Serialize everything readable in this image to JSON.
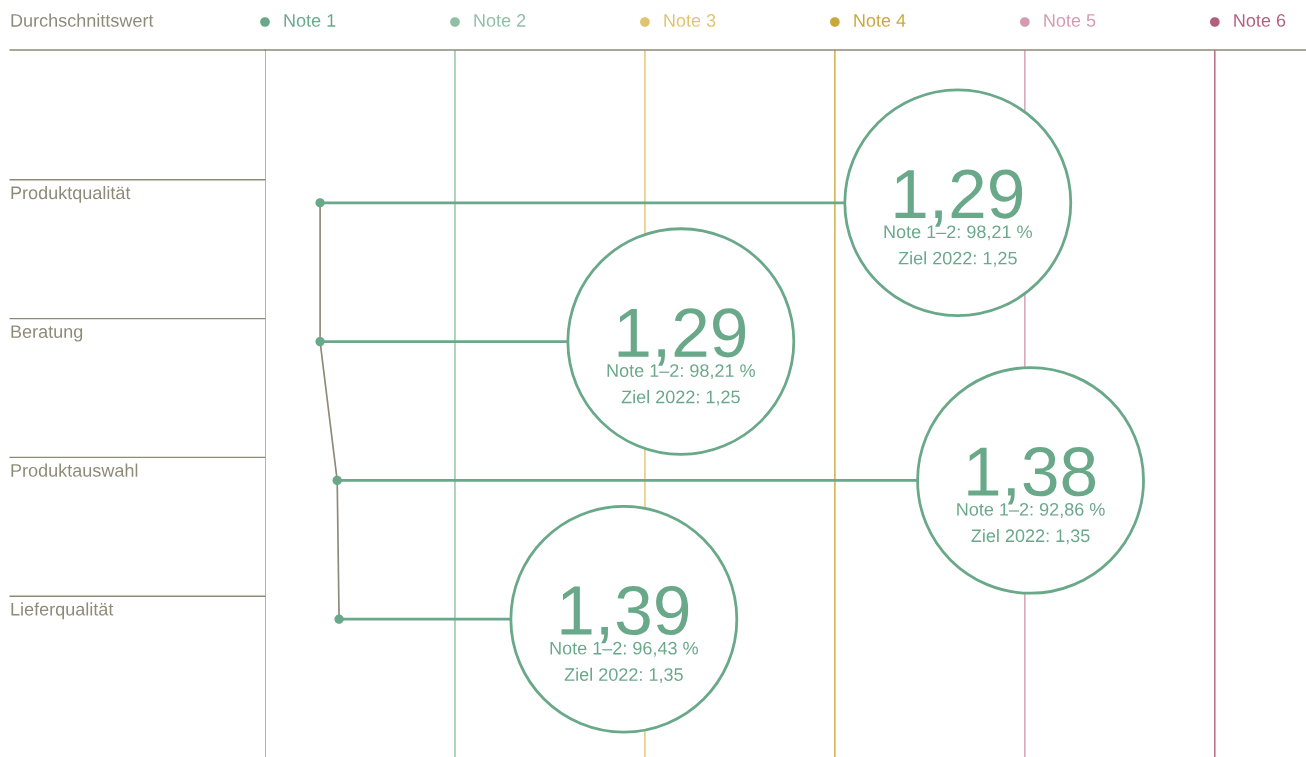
{
  "chart_data": {
    "type": "line",
    "orientation": "horizontal",
    "title": "Durchschnittswert",
    "categories": [
      "Produktqualität",
      "Beratung",
      "Produktauswahl",
      "Lieferqualität"
    ],
    "series": [
      {
        "color": "#8e8a78",
        "colors": [
          "#6aa88a",
          "#6aa88a",
          "#6aa88a",
          "#6aa88a"
        ],
        "values": [
          1.29,
          1.29,
          1.38,
          1.39
        ],
        "value_labels": [
          "1,29",
          "1,29",
          "1,38",
          "1,39"
        ]
      }
    ],
    "marker": "circle",
    "legend": "top",
    "xlim": [
      1,
      6.48
    ],
    "tick_labels": "y",
    "ref_lines": [
      {
        "axis": "x",
        "value": 1,
        "label": "Note 1",
        "color": "#6aa88a"
      },
      {
        "axis": "x",
        "value": 2,
        "label": "Note 2",
        "color": "#8fbfa5"
      },
      {
        "axis": "x",
        "value": 3,
        "label": "Note 3",
        "color": "#e0c36e"
      },
      {
        "axis": "x",
        "value": 4,
        "label": "Note 4",
        "color": "#c9a83a"
      },
      {
        "axis": "x",
        "value": 5,
        "label": "Note 5",
        "color": "#d49ab0"
      },
      {
        "axis": "x",
        "value": 6,
        "label": "Note 6",
        "color": "#b0607e"
      }
    ],
    "annotations": [
      "Note 1–2: 98,21 %",
      "Ziel 2022: 1,25",
      "Note 1–2: 98,21 %",
      "Ziel 2022: 1,25",
      "Note 1–2: 92,86 %",
      "Ziel 2022: 1,35",
      "Note 1–2: 96,43 %",
      "Ziel 2022: 1,35"
    ]
  }
}
